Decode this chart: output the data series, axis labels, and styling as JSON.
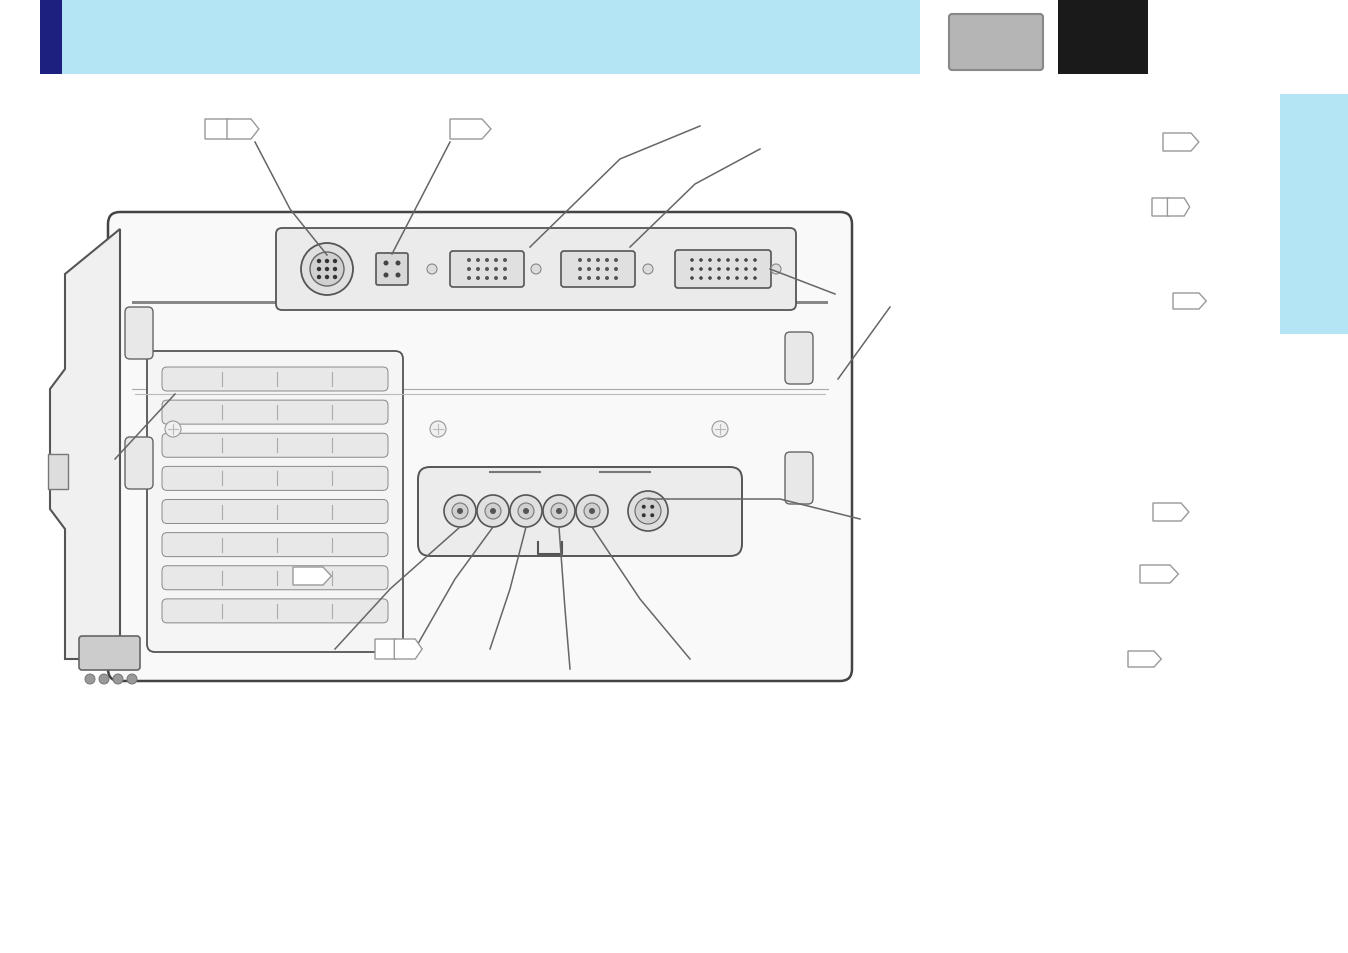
{
  "bg_color": "#ffffff",
  "header_blue": "#b3e5f5",
  "header_dark_blue": "#1e2080",
  "header_gray": "#a8a8a8",
  "header_black": "#222222",
  "right_bar_blue": "#b3e5f5",
  "body_fill": "#f8f8f8",
  "body_stroke": "#333333",
  "connector_fill": "#eeeeee",
  "connector_stroke": "#444444",
  "grill_fill": "#f0f0f0",
  "slat_fill": "#e0e0e0",
  "arrow_fill": "#ffffff",
  "arrow_stroke": "#999999",
  "line_color": "#666666",
  "line_width": 1.1
}
